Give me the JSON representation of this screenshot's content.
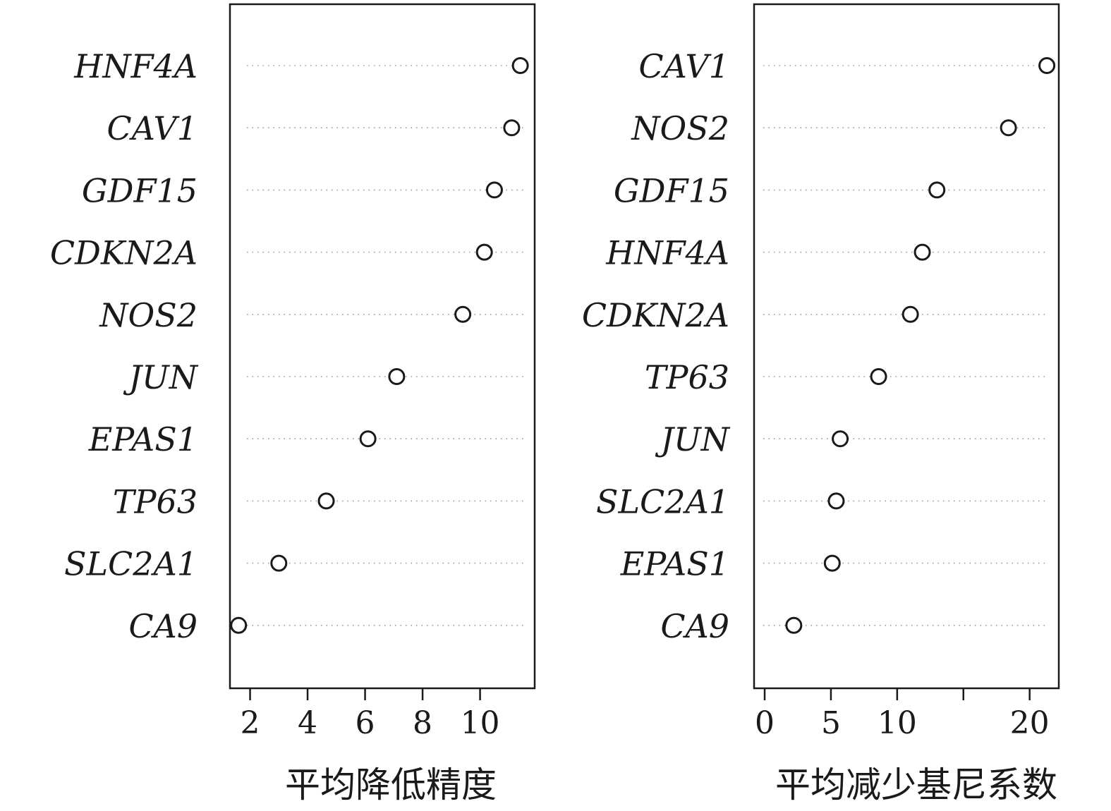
{
  "chart_data": [
    {
      "type": "scatter",
      "xlabel": "平均降低精度",
      "xticks": [
        2,
        4,
        6,
        8,
        10
      ],
      "xlim": [
        1.3,
        11.9
      ],
      "categories": [
        "HNF4A",
        "CAV1",
        "GDF15",
        "CDKN2A",
        "NOS2",
        "JUN",
        "EPAS1",
        "TP63",
        "SLC2A1",
        "CA9"
      ],
      "values": [
        11.4,
        11.1,
        10.5,
        10.15,
        9.4,
        7.1,
        6.1,
        4.65,
        3.0,
        1.6
      ],
      "marker": "open-circle",
      "grid": "dotted horizontal"
    },
    {
      "type": "scatter",
      "xlabel": "平均减少基尼系数",
      "xticks": [
        0,
        5,
        10,
        15,
        20
      ],
      "xtick_labels": [
        "0",
        "5",
        "10",
        "",
        "20"
      ],
      "xlim": [
        -0.8,
        22.2
      ],
      "categories": [
        "CAV1",
        "NOS2",
        "GDF15",
        "HNF4A",
        "CDKN2A",
        "TP63",
        "JUN",
        "SLC2A1",
        "EPAS1",
        "CA9"
      ],
      "values": [
        21.3,
        18.4,
        13.0,
        11.9,
        11.0,
        8.6,
        5.7,
        5.4,
        5.1,
        2.2
      ],
      "marker": "open-circle",
      "grid": "dotted horizontal"
    }
  ]
}
